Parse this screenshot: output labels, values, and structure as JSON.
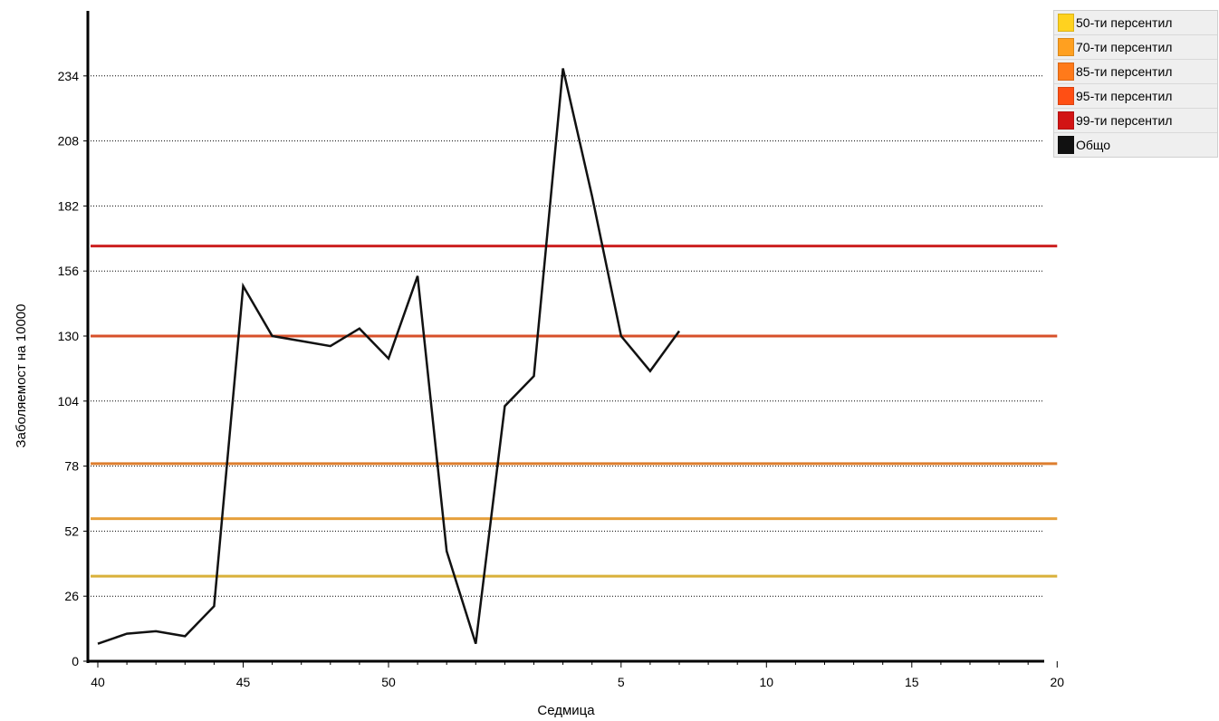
{
  "chart_data": {
    "type": "line",
    "xlabel": "Седмица",
    "ylabel": "Заболяемост на 10000",
    "ylim": [
      0,
      260
    ],
    "yticks": [
      0,
      26,
      52,
      78,
      104,
      130,
      156,
      182,
      208,
      234
    ],
    "x_week_sequence": [
      40,
      41,
      42,
      43,
      44,
      45,
      46,
      47,
      48,
      49,
      50,
      51,
      52,
      53,
      1,
      2,
      3,
      4,
      5,
      6,
      7,
      8,
      9,
      10,
      11,
      12,
      13,
      14,
      15,
      16,
      17,
      18,
      19,
      20
    ],
    "xtick_labels": [
      "40",
      "45",
      "50",
      "5",
      "10",
      "15",
      "20"
    ],
    "grid": "horizontal-dotted",
    "legend_position": "right",
    "series": [
      {
        "name": "50-ти персентил",
        "color": "#ffd21f",
        "line_color": "#d9b13a",
        "constant": 34
      },
      {
        "name": "70-ти персентил",
        "color": "#ffa020",
        "line_color": "#e6a03c",
        "constant": 57
      },
      {
        "name": "85-ти персентил",
        "color": "#ff7a1a",
        "line_color": "#dd7e2e",
        "constant": 79
      },
      {
        "name": "95-ти персентил",
        "color": "#ff4f14",
        "line_color": "#d7502a",
        "constant": 130
      },
      {
        "name": "99-ти персентил",
        "color": "#d21414",
        "line_color": "#cc2020",
        "constant": 166
      },
      {
        "name": "Общо",
        "color": "#111111",
        "line_color": "#111111",
        "weeks": [
          40,
          41,
          42,
          43,
          44,
          45,
          46,
          47,
          48,
          49,
          50,
          51,
          52,
          53,
          1,
          2,
          3,
          4,
          5,
          6,
          7,
          8
        ],
        "values": [
          7,
          11,
          12,
          10,
          22,
          150,
          130,
          128,
          126,
          133,
          121,
          154,
          44,
          7,
          102,
          114,
          237,
          186,
          130,
          116,
          132,
          null
        ]
      }
    ]
  }
}
